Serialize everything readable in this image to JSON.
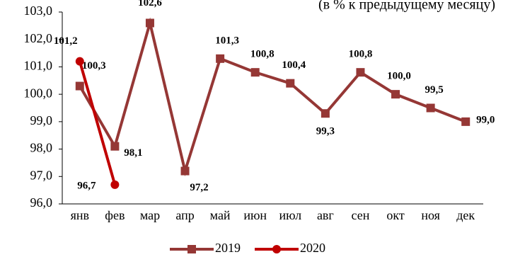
{
  "chart_data": {
    "type": "line",
    "subtitle": "(в % к предыдущему месяцу)",
    "categories": [
      "янв",
      "фев",
      "мар",
      "апр",
      "май",
      "июн",
      "июл",
      "авг",
      "сен",
      "окт",
      "ноя",
      "дек"
    ],
    "series": [
      {
        "name": "2019",
        "color": "#953735",
        "marker": "square",
        "values": [
          100.3,
          98.1,
          102.6,
          97.2,
          101.3,
          100.8,
          100.4,
          99.3,
          100.8,
          100.0,
          99.5,
          99.0
        ],
        "value_labels": [
          "100,3",
          "98,1",
          "102,6",
          "97,2",
          "101,3",
          "100,8",
          "100,4",
          "99,3",
          "100,8",
          "100,0",
          "99,5",
          "99,0"
        ]
      },
      {
        "name": "2020",
        "color": "#c00000",
        "marker": "circle",
        "values": [
          101.2,
          96.7,
          null,
          null,
          null,
          null,
          null,
          null,
          null,
          null,
          null,
          null
        ],
        "value_labels": [
          "101,2",
          "96,7",
          null,
          null,
          null,
          null,
          null,
          null,
          null,
          null,
          null,
          null
        ]
      }
    ],
    "ylim": [
      96,
      103
    ],
    "yticks": [
      {
        "value": 96,
        "label": "96,0"
      },
      {
        "value": 97,
        "label": "97,0"
      },
      {
        "value": 98,
        "label": "98,0"
      },
      {
        "value": 99,
        "label": "99,0"
      },
      {
        "value": 100,
        "label": "100,0"
      },
      {
        "value": 101,
        "label": "101,0"
      },
      {
        "value": 102,
        "label": "102,0"
      },
      {
        "value": 103,
        "label": "103,0"
      }
    ],
    "grid": false,
    "legend": "bottom"
  }
}
